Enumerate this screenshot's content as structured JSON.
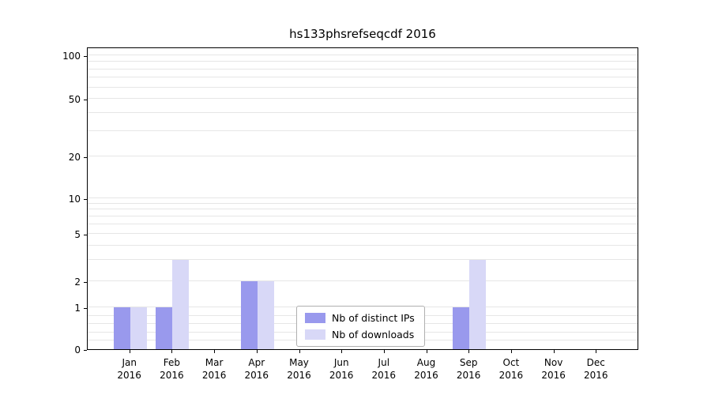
{
  "chart_data": {
    "type": "bar",
    "title": "hs133phsrefseqcdf 2016",
    "categories": [
      "Jan",
      "Feb",
      "Mar",
      "Apr",
      "May",
      "Jun",
      "Jul",
      "Aug",
      "Sep",
      "Oct",
      "Nov",
      "Dec"
    ],
    "year": "2016",
    "series": [
      {
        "name": "Nb of distinct IPs",
        "color": "#9999ed",
        "values": [
          1,
          1,
          0,
          2,
          0,
          0,
          0,
          0,
          1,
          0,
          0,
          0
        ]
      },
      {
        "name": "Nb of downloads",
        "color": "#d8d8f7",
        "values": [
          1,
          3,
          0,
          2,
          0,
          0,
          0,
          0,
          3,
          0,
          0,
          0
        ]
      }
    ],
    "yticks": [
      0,
      1,
      2,
      5,
      10,
      20,
      50,
      100
    ],
    "ylim": [
      0,
      110
    ],
    "yscale": "symlog",
    "grid": true,
    "legend_position": "lower center",
    "gridline_color": "#e6e6e6",
    "axis_color": "#000000"
  }
}
